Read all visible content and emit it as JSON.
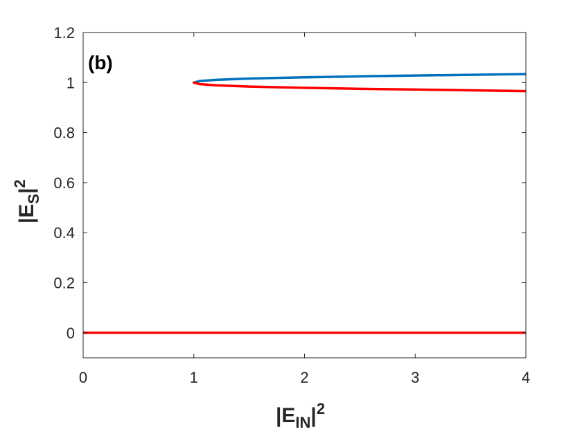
{
  "chart_data": {
    "type": "line",
    "panel_label": "(b)",
    "xlabel": {
      "base": "|E",
      "sub": "IN",
      "close": "|",
      "sup": "2"
    },
    "ylabel": {
      "base": "|E",
      "sub": "S",
      "close": "|",
      "sup": "2"
    },
    "xlim": [
      0,
      4
    ],
    "ylim": [
      -0.1,
      1.2
    ],
    "xticks": [
      0,
      1,
      2,
      3,
      4
    ],
    "xtick_labels": [
      "0",
      "1",
      "2",
      "3",
      "4"
    ],
    "yticks": [
      0,
      0.2,
      0.4,
      0.6,
      0.8,
      1,
      1.2
    ],
    "ytick_labels": [
      "0",
      "0.2",
      "0.4",
      "0.6",
      "0.8",
      "1",
      "1.2"
    ],
    "grid": false,
    "series": [
      {
        "color": "#0072BD",
        "x": [
          1,
          1.05,
          1.2,
          1.5,
          2,
          2.5,
          3,
          3.5,
          4
        ],
        "y": [
          1,
          1.006,
          1.011,
          1.016,
          1.021,
          1.025,
          1.028,
          1.031,
          1.034
        ]
      },
      {
        "color": "#FF0000",
        "x": [
          1,
          1.05,
          1.2,
          1.5,
          2,
          2.5,
          3,
          3.5,
          4
        ],
        "y": [
          1,
          0.994,
          0.989,
          0.984,
          0.979,
          0.975,
          0.972,
          0.969,
          0.966
        ]
      },
      {
        "color": "#FF0000",
        "x": [
          0,
          4
        ],
        "y": [
          0,
          0
        ]
      }
    ]
  }
}
